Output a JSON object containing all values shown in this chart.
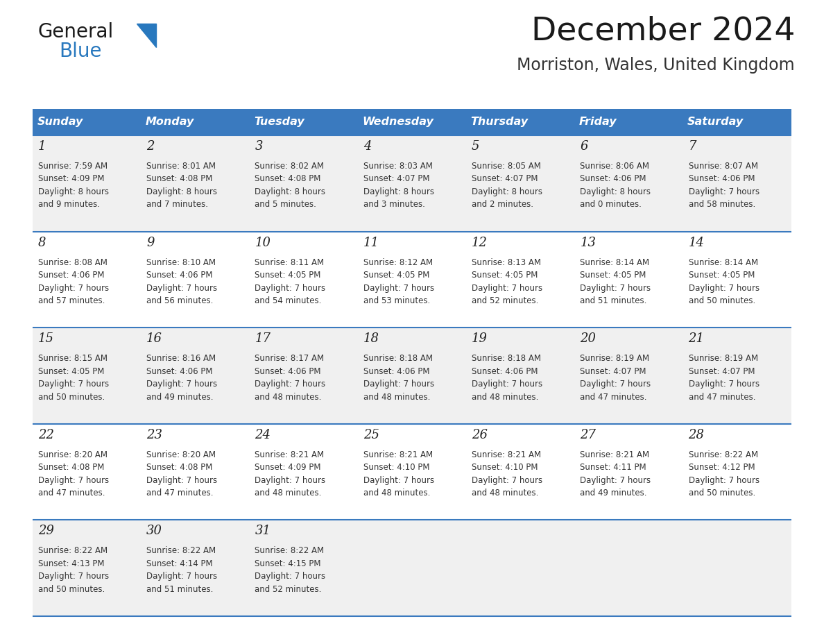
{
  "title": "December 2024",
  "subtitle": "Morriston, Wales, United Kingdom",
  "header_bg_color": "#3a7abf",
  "header_text_color": "#ffffff",
  "day_names": [
    "Sunday",
    "Monday",
    "Tuesday",
    "Wednesday",
    "Thursday",
    "Friday",
    "Saturday"
  ],
  "row_bg_even": "#f0f0f0",
  "row_bg_odd": "#ffffff",
  "separator_color": "#3a7abf",
  "day_num_color": "#222222",
  "cell_text_color": "#333333",
  "calendar_data": [
    [
      {
        "day": 1,
        "sunrise": "7:59 AM",
        "sunset": "4:09 PM",
        "daylight_line1": "Daylight: 8 hours",
        "daylight_line2": "and 9 minutes."
      },
      {
        "day": 2,
        "sunrise": "8:01 AM",
        "sunset": "4:08 PM",
        "daylight_line1": "Daylight: 8 hours",
        "daylight_line2": "and 7 minutes."
      },
      {
        "day": 3,
        "sunrise": "8:02 AM",
        "sunset": "4:08 PM",
        "daylight_line1": "Daylight: 8 hours",
        "daylight_line2": "and 5 minutes."
      },
      {
        "day": 4,
        "sunrise": "8:03 AM",
        "sunset": "4:07 PM",
        "daylight_line1": "Daylight: 8 hours",
        "daylight_line2": "and 3 minutes."
      },
      {
        "day": 5,
        "sunrise": "8:05 AM",
        "sunset": "4:07 PM",
        "daylight_line1": "Daylight: 8 hours",
        "daylight_line2": "and 2 minutes."
      },
      {
        "day": 6,
        "sunrise": "8:06 AM",
        "sunset": "4:06 PM",
        "daylight_line1": "Daylight: 8 hours",
        "daylight_line2": "and 0 minutes."
      },
      {
        "day": 7,
        "sunrise": "8:07 AM",
        "sunset": "4:06 PM",
        "daylight_line1": "Daylight: 7 hours",
        "daylight_line2": "and 58 minutes."
      }
    ],
    [
      {
        "day": 8,
        "sunrise": "8:08 AM",
        "sunset": "4:06 PM",
        "daylight_line1": "Daylight: 7 hours",
        "daylight_line2": "and 57 minutes."
      },
      {
        "day": 9,
        "sunrise": "8:10 AM",
        "sunset": "4:06 PM",
        "daylight_line1": "Daylight: 7 hours",
        "daylight_line2": "and 56 minutes."
      },
      {
        "day": 10,
        "sunrise": "8:11 AM",
        "sunset": "4:05 PM",
        "daylight_line1": "Daylight: 7 hours",
        "daylight_line2": "and 54 minutes."
      },
      {
        "day": 11,
        "sunrise": "8:12 AM",
        "sunset": "4:05 PM",
        "daylight_line1": "Daylight: 7 hours",
        "daylight_line2": "and 53 minutes."
      },
      {
        "day": 12,
        "sunrise": "8:13 AM",
        "sunset": "4:05 PM",
        "daylight_line1": "Daylight: 7 hours",
        "daylight_line2": "and 52 minutes."
      },
      {
        "day": 13,
        "sunrise": "8:14 AM",
        "sunset": "4:05 PM",
        "daylight_line1": "Daylight: 7 hours",
        "daylight_line2": "and 51 minutes."
      },
      {
        "day": 14,
        "sunrise": "8:14 AM",
        "sunset": "4:05 PM",
        "daylight_line1": "Daylight: 7 hours",
        "daylight_line2": "and 50 minutes."
      }
    ],
    [
      {
        "day": 15,
        "sunrise": "8:15 AM",
        "sunset": "4:05 PM",
        "daylight_line1": "Daylight: 7 hours",
        "daylight_line2": "and 50 minutes."
      },
      {
        "day": 16,
        "sunrise": "8:16 AM",
        "sunset": "4:06 PM",
        "daylight_line1": "Daylight: 7 hours",
        "daylight_line2": "and 49 minutes."
      },
      {
        "day": 17,
        "sunrise": "8:17 AM",
        "sunset": "4:06 PM",
        "daylight_line1": "Daylight: 7 hours",
        "daylight_line2": "and 48 minutes."
      },
      {
        "day": 18,
        "sunrise": "8:18 AM",
        "sunset": "4:06 PM",
        "daylight_line1": "Daylight: 7 hours",
        "daylight_line2": "and 48 minutes."
      },
      {
        "day": 19,
        "sunrise": "8:18 AM",
        "sunset": "4:06 PM",
        "daylight_line1": "Daylight: 7 hours",
        "daylight_line2": "and 48 minutes."
      },
      {
        "day": 20,
        "sunrise": "8:19 AM",
        "sunset": "4:07 PM",
        "daylight_line1": "Daylight: 7 hours",
        "daylight_line2": "and 47 minutes."
      },
      {
        "day": 21,
        "sunrise": "8:19 AM",
        "sunset": "4:07 PM",
        "daylight_line1": "Daylight: 7 hours",
        "daylight_line2": "and 47 minutes."
      }
    ],
    [
      {
        "day": 22,
        "sunrise": "8:20 AM",
        "sunset": "4:08 PM",
        "daylight_line1": "Daylight: 7 hours",
        "daylight_line2": "and 47 minutes."
      },
      {
        "day": 23,
        "sunrise": "8:20 AM",
        "sunset": "4:08 PM",
        "daylight_line1": "Daylight: 7 hours",
        "daylight_line2": "and 47 minutes."
      },
      {
        "day": 24,
        "sunrise": "8:21 AM",
        "sunset": "4:09 PM",
        "daylight_line1": "Daylight: 7 hours",
        "daylight_line2": "and 48 minutes."
      },
      {
        "day": 25,
        "sunrise": "8:21 AM",
        "sunset": "4:10 PM",
        "daylight_line1": "Daylight: 7 hours",
        "daylight_line2": "and 48 minutes."
      },
      {
        "day": 26,
        "sunrise": "8:21 AM",
        "sunset": "4:10 PM",
        "daylight_line1": "Daylight: 7 hours",
        "daylight_line2": "and 48 minutes."
      },
      {
        "day": 27,
        "sunrise": "8:21 AM",
        "sunset": "4:11 PM",
        "daylight_line1": "Daylight: 7 hours",
        "daylight_line2": "and 49 minutes."
      },
      {
        "day": 28,
        "sunrise": "8:22 AM",
        "sunset": "4:12 PM",
        "daylight_line1": "Daylight: 7 hours",
        "daylight_line2": "and 50 minutes."
      }
    ],
    [
      {
        "day": 29,
        "sunrise": "8:22 AM",
        "sunset": "4:13 PM",
        "daylight_line1": "Daylight: 7 hours",
        "daylight_line2": "and 50 minutes."
      },
      {
        "day": 30,
        "sunrise": "8:22 AM",
        "sunset": "4:14 PM",
        "daylight_line1": "Daylight: 7 hours",
        "daylight_line2": "and 51 minutes."
      },
      {
        "day": 31,
        "sunrise": "8:22 AM",
        "sunset": "4:15 PM",
        "daylight_line1": "Daylight: 7 hours",
        "daylight_line2": "and 52 minutes."
      },
      null,
      null,
      null,
      null
    ]
  ],
  "logo_text1": "General",
  "logo_text2": "Blue",
  "logo_text1_color": "#1a1a1a",
  "logo_text2_color": "#2878be",
  "logo_triangle_color": "#2878be",
  "title_color": "#1a1a1a",
  "subtitle_color": "#333333"
}
